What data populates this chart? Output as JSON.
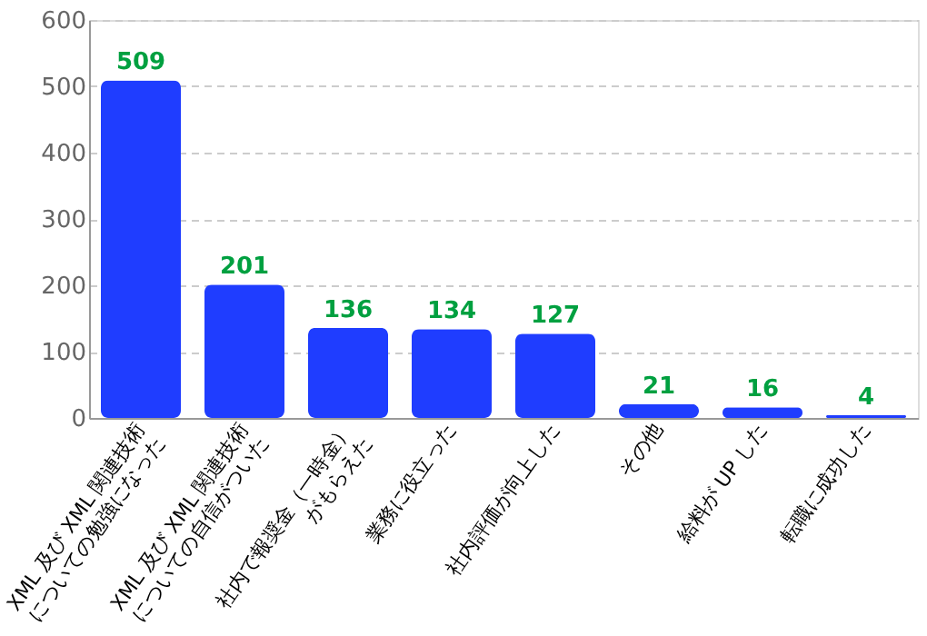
{
  "chart_data": {
    "type": "bar",
    "categories": [
      "XML 及び XML 関連技術\nについての勉強になった",
      "XML 及び XML 関連技術\nについての自信がついた",
      "社内で報奨金（一時金）\nがもらえた",
      "業務に役立った",
      "社内評価が向上した",
      "その他",
      "給料が UP した",
      "転職に成功した"
    ],
    "values": [
      509,
      201,
      136,
      134,
      127,
      21,
      16,
      4
    ],
    "color": "#1f3dff",
    "ylim": [
      0,
      600
    ],
    "yticks": [
      0,
      100,
      200,
      300,
      400,
      500,
      600
    ],
    "grid": "y",
    "data_labels": true
  }
}
